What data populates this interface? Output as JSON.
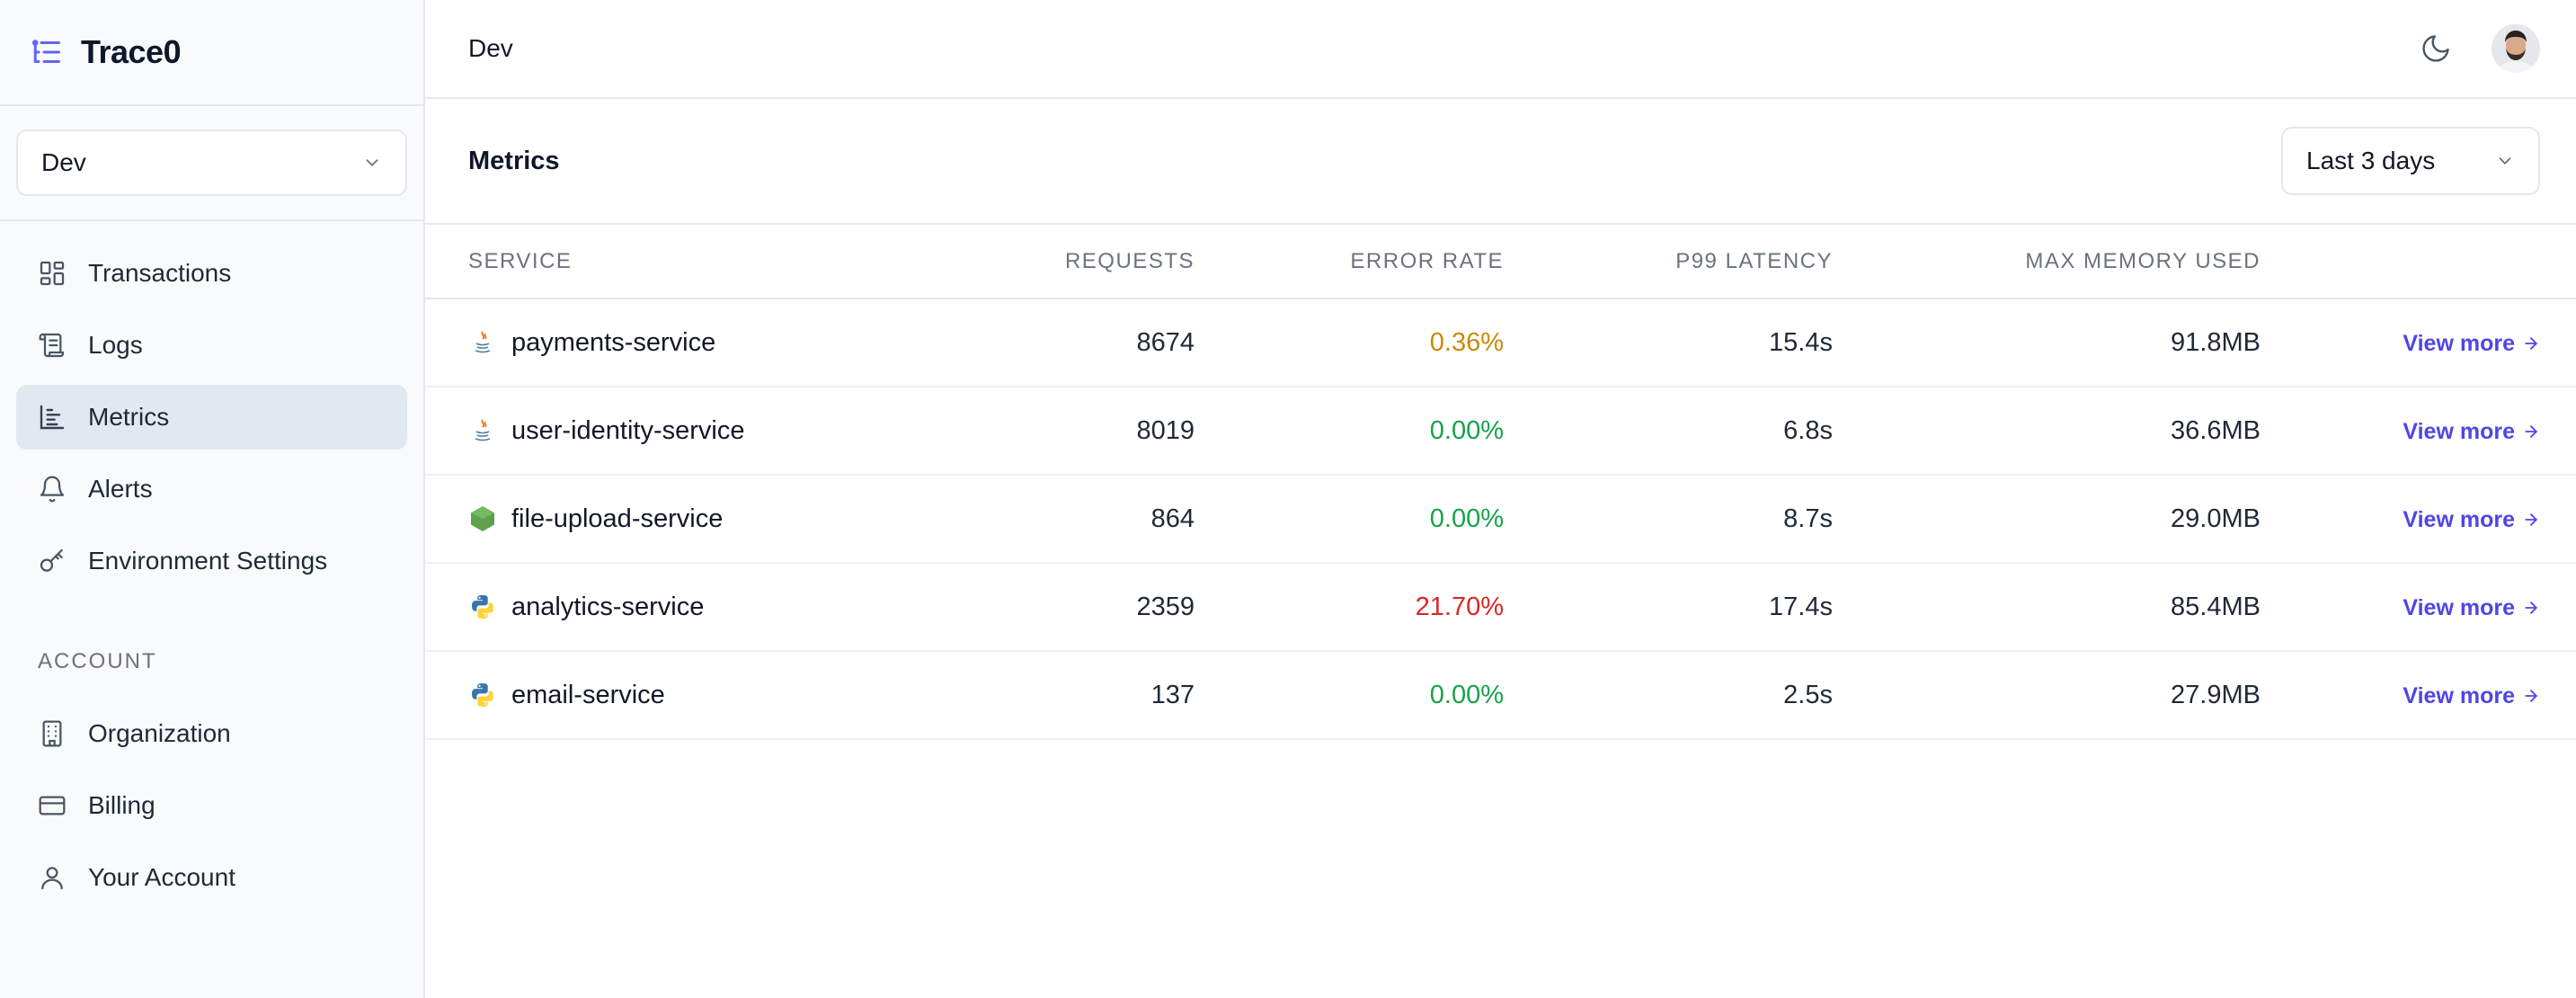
{
  "brand": {
    "name": "Trace0"
  },
  "environment": {
    "selected": "Dev"
  },
  "nav": {
    "items": [
      {
        "label": "Transactions",
        "icon": "dashboard-icon",
        "active": false
      },
      {
        "label": "Logs",
        "icon": "scroll-icon",
        "active": false
      },
      {
        "label": "Metrics",
        "icon": "bar-chart-icon",
        "active": true
      },
      {
        "label": "Alerts",
        "icon": "bell-icon",
        "active": false
      },
      {
        "label": "Environment Settings",
        "icon": "key-icon",
        "active": false
      }
    ],
    "account_section": "ACCOUNT",
    "account_items": [
      {
        "label": "Organization",
        "icon": "building-icon"
      },
      {
        "label": "Billing",
        "icon": "credit-card-icon"
      },
      {
        "label": "Your Account",
        "icon": "user-icon"
      }
    ]
  },
  "header": {
    "title": "Dev"
  },
  "metrics": {
    "title": "Metrics",
    "range": "Last 3 days",
    "columns": [
      "SERVICE",
      "REQUESTS",
      "ERROR RATE",
      "P99 LATENCY",
      "MAX MEMORY USED"
    ],
    "rows": [
      {
        "service": "payments-service",
        "icon": "java-icon",
        "requests": "8674",
        "error_rate": "0.36%",
        "error_color": "#ca8a04",
        "p99": "15.4s",
        "memory": "91.8MB",
        "action": "View more"
      },
      {
        "service": "user-identity-service",
        "icon": "java-icon",
        "requests": "8019",
        "error_rate": "0.00%",
        "error_color": "#16a34a",
        "p99": "6.8s",
        "memory": "36.6MB",
        "action": "View more"
      },
      {
        "service": "file-upload-service",
        "icon": "nodejs-icon",
        "requests": "864",
        "error_rate": "0.00%",
        "error_color": "#16a34a",
        "p99": "8.7s",
        "memory": "29.0MB",
        "action": "View more"
      },
      {
        "service": "analytics-service",
        "icon": "python-icon",
        "requests": "2359",
        "error_rate": "21.70%",
        "error_color": "#dc2626",
        "p99": "17.4s",
        "memory": "85.4MB",
        "action": "View more"
      },
      {
        "service": "email-service",
        "icon": "python-icon",
        "requests": "137",
        "error_rate": "0.00%",
        "error_color": "#16a34a",
        "p99": "2.5s",
        "memory": "27.9MB",
        "action": "View more"
      }
    ]
  },
  "colors": {
    "accent": "#4f46e5",
    "active_nav": "#e2e8f0"
  }
}
